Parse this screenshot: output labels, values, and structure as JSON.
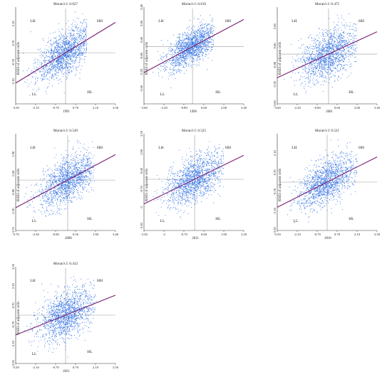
{
  "figure": {
    "ylabel": "RSEI of adjacent cells",
    "quadrants": {
      "hh": "HH",
      "lh": "LH",
      "ll": "LL",
      "hl": "HL"
    },
    "colors": {
      "points": "#3f7be6",
      "fit_line": "#7a1f72",
      "axes": "#333333",
      "origin_lines": "#9a9a9a"
    }
  },
  "chart_data": [
    {
      "type": "scatter",
      "title": "Moran's I:  0.627",
      "year": "1991",
      "xlim": [
        -3.5,
        3.5
      ],
      "ylim": [
        -3.7,
        3.3
      ],
      "x_ticks": [
        "-3.50",
        "-2.10",
        "-0.70",
        "0.70",
        "2.10",
        "3.50"
      ],
      "y_ticks": [
        "2.10",
        "0.70",
        "-0.70",
        "-2.10"
      ],
      "y_tick_values": [
        2.1,
        0.7,
        -0.7,
        -2.1
      ],
      "fit_line": {
        "slope": 0.627,
        "intercept": 0
      },
      "points_cloud": {
        "x_center": 0,
        "x_spread": 1.05,
        "x_min": -3.2,
        "x_max": 1.5,
        "y_spread": 0.8
      }
    },
    {
      "type": "scatter",
      "title": "Moran's I:  0.616",
      "year": "1996",
      "xlim": [
        -3.6,
        3.8
      ],
      "ylim": [
        -4.9,
        3.4
      ],
      "x_ticks": [
        "-3.60",
        "-2.20",
        "-0.80",
        "0.60",
        "2.00",
        "3.40"
      ],
      "y_ticks": [
        "3.40",
        "2.00",
        "0.60",
        "-0.80",
        "-2.20",
        "-3.60"
      ],
      "y_tick_values": [
        3.4,
        2.0,
        0.6,
        -0.8,
        -2.2,
        -3.6
      ],
      "fit_line": {
        "slope": 0.616,
        "intercept": 0
      },
      "points_cloud": {
        "x_center": 0,
        "x_spread": 1.0,
        "x_min": -3.0,
        "x_max": 1.6,
        "y_spread": 0.75
      }
    },
    {
      "type": "scatter",
      "title": "Moran's I:  0.475",
      "year": "2001",
      "xlim": [
        -3.6,
        3.4
      ],
      "ylim": [
        -3.6,
        3.4
      ],
      "x_ticks": [
        "-3.60",
        "-2.20",
        "-0.80",
        "0.60",
        "2.00",
        "3.40"
      ],
      "y_ticks": [
        "2.00",
        "0.60",
        "-0.80",
        "-2.20",
        "-3.60"
      ],
      "y_tick_values": [
        2.0,
        0.6,
        -0.8,
        -2.2,
        -3.6
      ],
      "fit_line": {
        "slope": 0.475,
        "intercept": 0
      },
      "points_cloud": {
        "x_center": 0,
        "x_spread": 1.05,
        "x_min": -3.2,
        "x_max": 2.0,
        "y_spread": 0.85
      }
    },
    {
      "type": "scatter",
      "title": "Moran's I:  0.549",
      "year": "2006",
      "xlim": [
        -3.7,
        3.4
      ],
      "ylim": [
        -3.7,
        3.4
      ],
      "x_ticks": [
        "-3.70",
        "-2.30",
        "-0.90",
        "0.50",
        "1.90",
        "3.40"
      ],
      "y_ticks": [
        "1.90",
        "0.50",
        "-0.90",
        "-2.30",
        "-3.70"
      ],
      "y_tick_values": [
        1.9,
        0.5,
        -0.9,
        -2.3,
        -3.7
      ],
      "fit_line": {
        "slope": 0.549,
        "intercept": 0
      },
      "points_cloud": {
        "x_center": 0,
        "x_spread": 1.0,
        "x_min": -3.3,
        "x_max": 1.9,
        "y_spread": 0.8
      }
    },
    {
      "type": "scatter",
      "title": "Moran's I:  0.525",
      "year": "2011",
      "xlim": [
        -3.3,
        3.2
      ],
      "ylim": [
        -3.6,
        3.2
      ],
      "x_ticks": [
        "-3.30",
        "-2",
        "-0.70",
        "0.60",
        "1.90",
        "3.20"
      ],
      "y_ticks": [
        "3.20",
        "1.90",
        "0.60",
        "-0.70",
        "-2",
        "-3.30"
      ],
      "y_tick_values": [
        3.2,
        1.9,
        0.6,
        -0.7,
        -2.0,
        -3.3
      ],
      "fit_line": {
        "slope": 0.525,
        "intercept": 0
      },
      "points_cloud": {
        "x_center": 0,
        "x_spread": 1.0,
        "x_min": -3.0,
        "x_max": 1.9,
        "y_spread": 0.8
      }
    },
    {
      "type": "scatter",
      "title": "Moran's I:  0.521",
      "year": "2016",
      "xlim": [
        -3.5,
        3.5
      ],
      "ylim": [
        -3.5,
        3.5
      ],
      "x_ticks": [
        "-3.50",
        "-2.10",
        "-0.70",
        "0.70",
        "2.10",
        "3.50"
      ],
      "y_ticks": [
        "2.10",
        "0.70",
        "-0.70",
        "-2.10",
        "-3.50"
      ],
      "y_tick_values": [
        2.1,
        0.7,
        -0.7,
        -2.1,
        -3.5
      ],
      "fit_line": {
        "slope": 0.521,
        "intercept": 0
      },
      "points_cloud": {
        "x_center": 0,
        "x_spread": 1.0,
        "x_min": -3.1,
        "x_max": 2.1,
        "y_spread": 0.8
      }
    },
    {
      "type": "scatter",
      "title": "Moran's I:  0.412",
      "year": "2021",
      "xlim": [
        -3.5,
        3.5
      ],
      "ylim": [
        -3.5,
        3.5
      ],
      "x_ticks": [
        "-3.50",
        "-2.10",
        "-0.70",
        "0.70",
        "2.10",
        "3.50"
      ],
      "y_ticks": [
        "3.50",
        "2.10",
        "0.70",
        "-0.70",
        "-2.10",
        "-3.50"
      ],
      "y_tick_values": [
        3.5,
        2.1,
        0.7,
        -0.7,
        -2.1,
        -3.5
      ],
      "fit_line": {
        "slope": 0.412,
        "intercept": 0
      },
      "points_cloud": {
        "x_center": 0,
        "x_spread": 1.0,
        "x_min": -3.2,
        "x_max": 2.2,
        "y_spread": 0.85
      }
    }
  ]
}
